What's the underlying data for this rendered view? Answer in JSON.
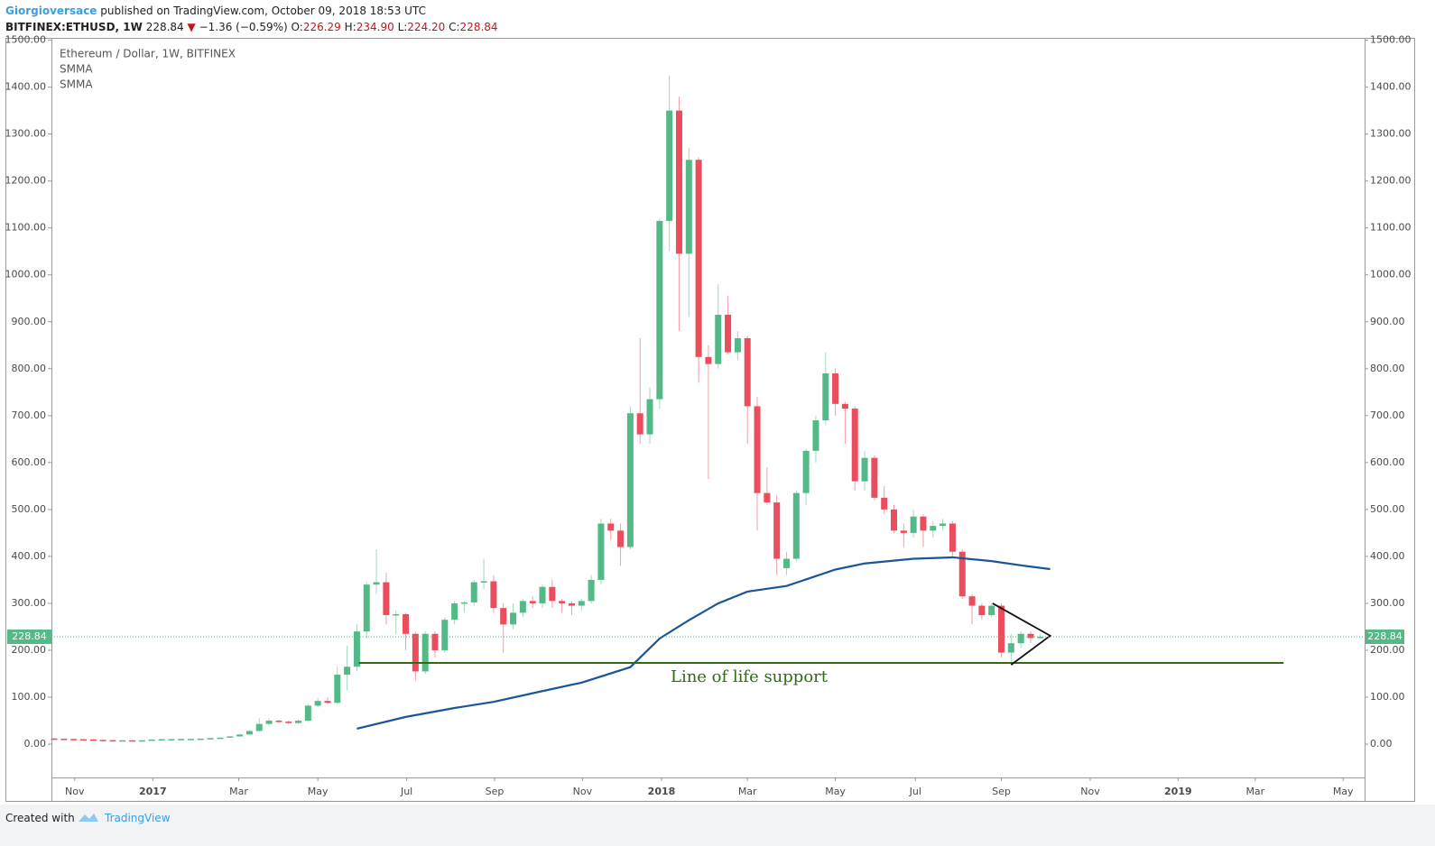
{
  "header": {
    "author": "Giorgioversace",
    "published": "published on TradingView.com, October 09, 2018 18:53 UTC",
    "symbol": "BITFINEX:ETHUSD, 1W",
    "price": "228.84",
    "arrow": "▼",
    "change": "−1.36 (−0.59%)",
    "ohlc": [
      {
        "key": "O:",
        "value": "226.29"
      },
      {
        "key": "H:",
        "value": "234.90"
      },
      {
        "key": "L:",
        "value": "224.20"
      },
      {
        "key": "C:",
        "value": "228.84"
      }
    ]
  },
  "footer": {
    "created": "Created with",
    "brand": "TradingView"
  },
  "chart_data": {
    "type": "candlestick",
    "legend": [
      "Ethereum / Dollar, 1W, BITFINEX",
      "SMMA",
      "SMMA"
    ],
    "up_color": "#53b987",
    "down_color": "#eb4d5c",
    "open": [
      12,
      11.5,
      11,
      10.5,
      10,
      9,
      8.5,
      8,
      8.2,
      7.8,
      8.2,
      9.8,
      10.5,
      10.7,
      11,
      11.2,
      11.8,
      12.8,
      13.8,
      16.5,
      20.5,
      28,
      43,
      50,
      48,
      45,
      50,
      82,
      92,
      88,
      148,
      165,
      240,
      340,
      345,
      275,
      277,
      235,
      155,
      235,
      200,
      265,
      300,
      302,
      345,
      347,
      290,
      255,
      280,
      305,
      300,
      335,
      305,
      300,
      295,
      305,
      350,
      470,
      455,
      420,
      705,
      660,
      735,
      1115,
      1350,
      1045,
      1245,
      825,
      810,
      915,
      835,
      865,
      720,
      535,
      515,
      375,
      395,
      535,
      625,
      690,
      790,
      725,
      715,
      560,
      610,
      525,
      500,
      455,
      450,
      485,
      455,
      465,
      470,
      410,
      315,
      295,
      275,
      295,
      195,
      215,
      235,
      226.29
    ],
    "high": [
      13,
      12,
      11.5,
      11,
      10.5,
      9.5,
      9,
      8.5,
      8.5,
      8.5,
      10,
      11,
      11,
      11.5,
      11.5,
      12,
      13,
      14,
      17,
      22,
      30,
      55,
      55,
      52,
      50,
      52,
      85,
      98,
      100,
      165,
      210,
      255,
      345,
      415,
      365,
      285,
      280,
      240,
      240,
      240,
      270,
      305,
      305,
      350,
      395,
      360,
      300,
      300,
      310,
      315,
      340,
      350,
      310,
      305,
      310,
      360,
      480,
      480,
      470,
      720,
      865,
      760,
      1120,
      1425,
      1380,
      1270,
      1250,
      850,
      980,
      955,
      880,
      870,
      740,
      590,
      530,
      410,
      540,
      630,
      700,
      835,
      800,
      730,
      720,
      625,
      615,
      550,
      510,
      470,
      500,
      490,
      475,
      480,
      475,
      415,
      320,
      300,
      300,
      300,
      235,
      240,
      240,
      234.9
    ],
    "low": [
      11,
      10.5,
      10,
      9.5,
      9,
      8,
      7.5,
      7.5,
      7.5,
      7.5,
      8,
      9.5,
      10,
      10.5,
      10.5,
      11,
      11.5,
      12.5,
      13.5,
      16,
      20,
      27,
      40,
      45,
      43,
      43,
      47,
      78,
      85,
      85,
      115,
      155,
      225,
      320,
      255,
      235,
      200,
      135,
      150,
      185,
      195,
      255,
      280,
      295,
      330,
      280,
      195,
      245,
      270,
      290,
      290,
      290,
      280,
      275,
      285,
      300,
      340,
      435,
      380,
      415,
      640,
      640,
      715,
      1050,
      880,
      910,
      770,
      565,
      800,
      830,
      820,
      640,
      455,
      510,
      360,
      360,
      390,
      510,
      600,
      680,
      700,
      640,
      540,
      540,
      520,
      490,
      450,
      420,
      440,
      420,
      440,
      455,
      400,
      310,
      255,
      265,
      270,
      185,
      170,
      205,
      215,
      224.2
    ],
    "close": [
      11.5,
      11,
      10.5,
      10,
      9,
      8.5,
      8,
      8.2,
      7.8,
      8.2,
      9.8,
      10.5,
      10.7,
      11,
      11.2,
      11.8,
      12.8,
      13.8,
      16.5,
      20.5,
      28,
      43,
      50,
      48,
      45,
      50,
      82,
      92,
      88,
      148,
      165,
      240,
      340,
      345,
      275,
      277,
      235,
      155,
      235,
      200,
      265,
      300,
      302,
      345,
      347,
      290,
      255,
      280,
      305,
      300,
      335,
      305,
      300,
      295,
      305,
      350,
      470,
      455,
      420,
      705,
      660,
      735,
      1115,
      1350,
      1045,
      1245,
      825,
      810,
      915,
      835,
      865,
      720,
      535,
      515,
      395,
      395,
      535,
      625,
      690,
      790,
      725,
      715,
      560,
      610,
      525,
      500,
      455,
      450,
      485,
      455,
      465,
      470,
      410,
      315,
      295,
      275,
      295,
      195,
      215,
      235,
      226,
      228.84
    ],
    "smma": {
      "color": "#1a5599",
      "x": [
        31,
        36,
        41,
        45,
        50,
        54,
        59,
        62,
        65,
        68,
        71,
        75,
        80,
        83,
        88,
        92,
        96,
        99,
        102
      ],
      "values": [
        33,
        58,
        77,
        90,
        113,
        131,
        164,
        225,
        264,
        300,
        325,
        337,
        372,
        385,
        395,
        398,
        390,
        381,
        373
      ]
    },
    "support": {
      "label": "Line of life support",
      "value": 173,
      "x": [
        31.2,
        125.9
      ],
      "color": "#2e6b13"
    },
    "triangle": {
      "x": [
        96.1,
        102,
        98
      ],
      "values": [
        300,
        231,
        169
      ]
    },
    "last_price_label": "228.84",
    "xlim": [
      -0.28,
      134.2
    ],
    "ylim": [
      -71,
      1503
    ],
    "yticks": [
      {
        "value": 0,
        "label": "0.00"
      },
      {
        "value": 100,
        "label": "100.00"
      },
      {
        "value": 200,
        "label": "200.00"
      },
      {
        "value": 300,
        "label": "300.00"
      },
      {
        "value": 400,
        "label": "400.00"
      },
      {
        "value": 500,
        "label": "500.00"
      },
      {
        "value": 600,
        "label": "600.00"
      },
      {
        "value": 700,
        "label": "700.00"
      },
      {
        "value": 800,
        "label": "800.00"
      },
      {
        "value": 900,
        "label": "900.00"
      },
      {
        "value": 1000,
        "label": "1000.00"
      },
      {
        "value": 1100,
        "label": "1100.00"
      },
      {
        "value": 1200,
        "label": "1200.00"
      },
      {
        "value": 1300,
        "label": "1300.00"
      },
      {
        "value": 1400,
        "label": "1400.00"
      },
      {
        "value": 1500,
        "label": "1500.00"
      }
    ],
    "xticks": [
      {
        "value": 2.1,
        "label": "Nov"
      },
      {
        "value": 10.1,
        "label": "2017"
      },
      {
        "value": 18.9,
        "label": "Mar"
      },
      {
        "value": 27,
        "label": "May"
      },
      {
        "value": 36.1,
        "label": "Jul"
      },
      {
        "value": 45.1,
        "label": "Sep"
      },
      {
        "value": 54.1,
        "label": "Nov"
      },
      {
        "value": 62.2,
        "label": "2018"
      },
      {
        "value": 71,
        "label": "Mar"
      },
      {
        "value": 80,
        "label": "May"
      },
      {
        "value": 88.2,
        "label": "Jul"
      },
      {
        "value": 97,
        "label": "Sep"
      },
      {
        "value": 106.1,
        "label": "Nov"
      },
      {
        "value": 115.1,
        "label": "2019"
      },
      {
        "value": 123,
        "label": "Mar"
      },
      {
        "value": 132,
        "label": "May"
      }
    ]
  }
}
